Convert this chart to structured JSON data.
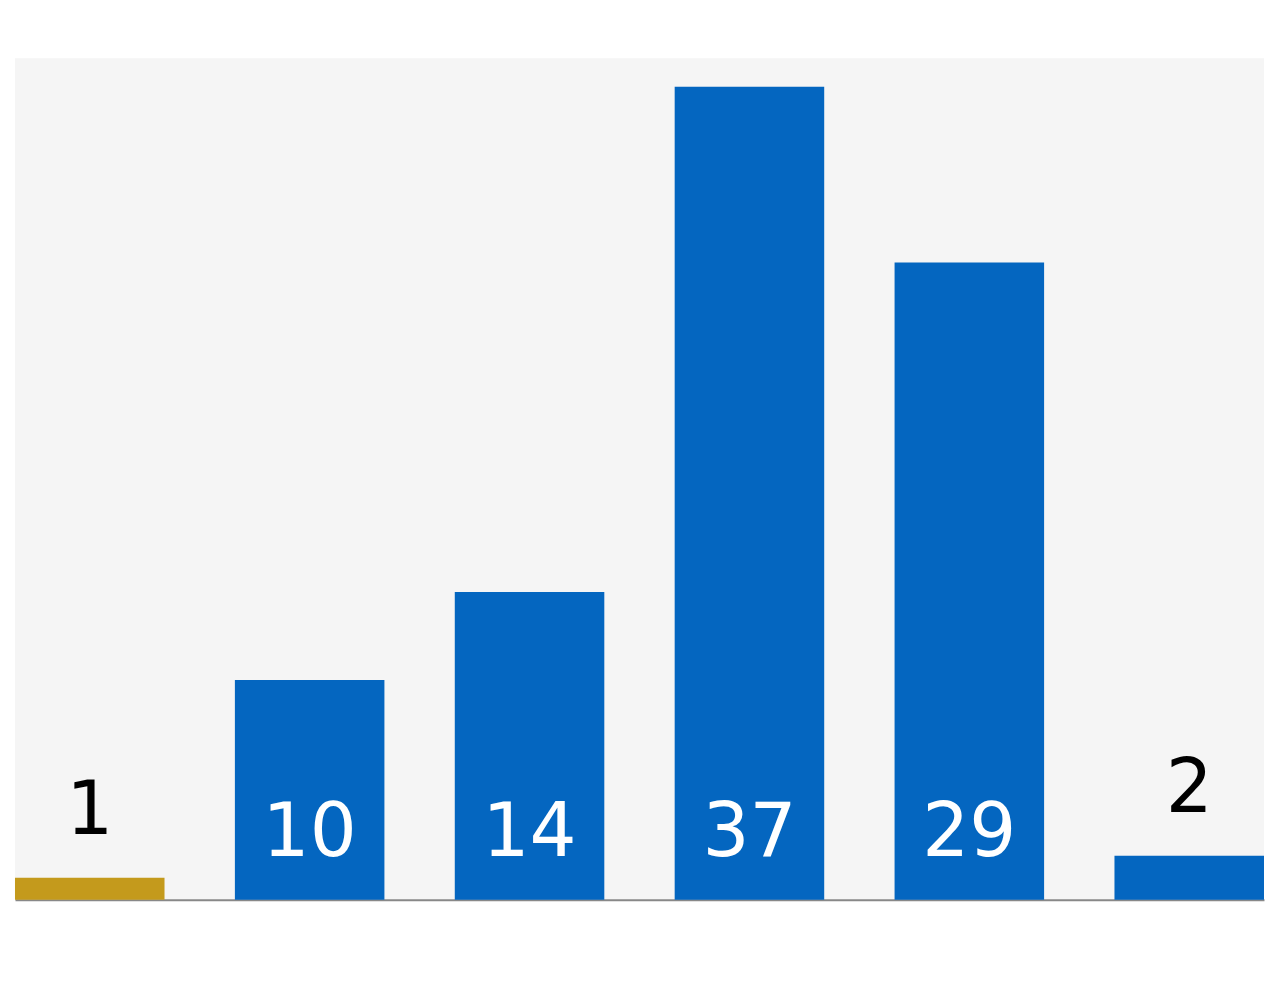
{
  "chart_data": {
    "type": "bar",
    "categories": [
      null,
      null,
      null,
      null,
      null,
      null
    ],
    "values": [
      1,
      10,
      14,
      37,
      29,
      2
    ],
    "colors": [
      "#c49a1c",
      "#0466c0",
      "#0466c0",
      "#0466c0",
      "#0466c0",
      "#0466c0"
    ],
    "data_labels": true
  }
}
